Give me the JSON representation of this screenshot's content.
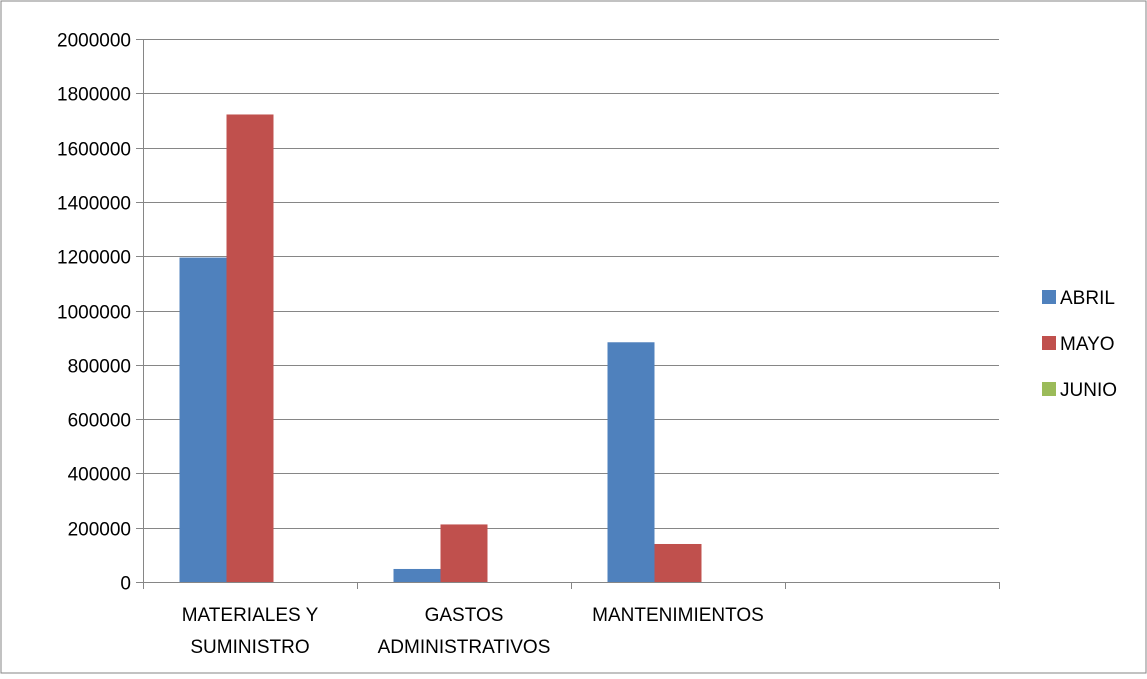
{
  "chart_data": {
    "type": "bar",
    "categories": [
      [
        "MATERIALES Y",
        "SUMINISTRO"
      ],
      [
        "GASTOS",
        "ADMINISTRATIVOS"
      ],
      [
        "MANTENIMIENTOS"
      ],
      [
        ""
      ]
    ],
    "series": [
      {
        "name": "ABRIL",
        "color": "#4F81BD",
        "values": [
          1195000,
          48000,
          883000,
          0
        ]
      },
      {
        "name": "MAYO",
        "color": "#C0504D",
        "values": [
          1722000,
          212000,
          140000,
          0
        ]
      },
      {
        "name": "JUNIO",
        "color": "#9BBB59",
        "values": [
          0,
          0,
          0,
          0
        ]
      }
    ],
    "ylim": [
      0,
      2000000
    ],
    "yticks": [
      0,
      200000,
      400000,
      600000,
      800000,
      1000000,
      1200000,
      1400000,
      1600000,
      1800000,
      2000000
    ],
    "grid": true,
    "legend_position": "right",
    "title": "",
    "xlabel": "",
    "ylabel": ""
  }
}
